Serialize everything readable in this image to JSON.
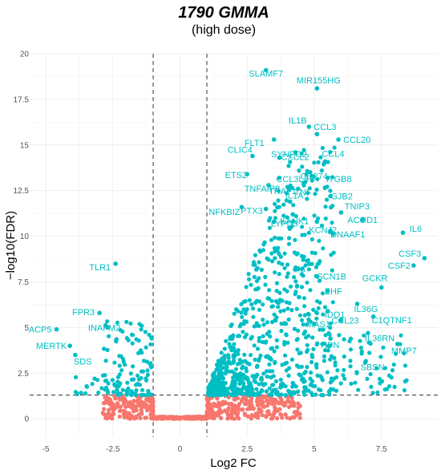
{
  "chart_data": {
    "type": "scatter",
    "title": "1790 GMMA",
    "subtitle": "(high dose)",
    "xlabel": "Log2 FC",
    "ylabel": "−log10(FDR)",
    "xlim": [
      -5.6,
      9.6
    ],
    "ylim": [
      -1.0,
      20.0
    ],
    "x_ticks": [
      -5,
      -2.5,
      0,
      2.5,
      5,
      7.5
    ],
    "x_tick_labels": [
      "-5",
      "-2.5",
      "0",
      "2.5",
      "5",
      "7.5"
    ],
    "y_ticks": [
      0,
      2.5,
      5,
      7.5,
      10,
      12.5,
      15,
      17.5,
      20
    ],
    "y_tick_labels": [
      "0",
      "2.5",
      "5",
      "7.5",
      "10",
      "12.5",
      "15",
      "17.5",
      "20"
    ],
    "grid": true,
    "thresholds": {
      "log2fc": [
        -1,
        1
      ],
      "neg_log10_fdr": 1.3
    },
    "colors": {
      "significant": "#00BFC4",
      "not_significant": "#F8766D",
      "threshold_line": "#333333"
    },
    "labeled_points": [
      {
        "gene": "SLAMF7",
        "x": 3.2,
        "y": 19.1
      },
      {
        "gene": "MIR155HG",
        "x": 5.1,
        "y": 18.1
      },
      {
        "gene": "IL1B",
        "x": 4.8,
        "y": 16.0
      },
      {
        "gene": "CCL3",
        "x": 5.1,
        "y": 15.6
      },
      {
        "gene": "FLT1",
        "x": 3.5,
        "y": 15.3
      },
      {
        "gene": "CCL20",
        "x": 5.9,
        "y": 15.3
      },
      {
        "gene": "SYNPO2",
        "x": 4.3,
        "y": 14.6
      },
      {
        "gene": "CLIC4",
        "x": 2.7,
        "y": 14.4
      },
      {
        "gene": "CXCL2",
        "x": 3.7,
        "y": 14.3
      },
      {
        "gene": "CCL4",
        "x": 5.4,
        "y": 14.1
      },
      {
        "gene": "ETS2",
        "x": 2.5,
        "y": 13.4
      },
      {
        "gene": "CD274",
        "x": 4.9,
        "y": 13.3
      },
      {
        "gene": "CCL3L3",
        "x": 3.7,
        "y": 13.2
      },
      {
        "gene": "ITGB8",
        "x": 5.5,
        "y": 13.2
      },
      {
        "gene": "TNFAIP8",
        "x": 3.3,
        "y": 12.8
      },
      {
        "gene": "TRAF1",
        "x": 4.0,
        "y": 12.7
      },
      {
        "gene": "TNF",
        "x": 4.4,
        "y": 12.6
      },
      {
        "gene": "GJB2",
        "x": 5.6,
        "y": 12.2
      },
      {
        "gene": "IL1A",
        "x": 4.1,
        "y": 11.9
      },
      {
        "gene": "NFKBIZ",
        "x": 2.3,
        "y": 11.6
      },
      {
        "gene": "PTX3",
        "x": 3.2,
        "y": 11.5
      },
      {
        "gene": "TNIP3",
        "x": 6.0,
        "y": 11.3
      },
      {
        "gene": "KANK1",
        "x": 4.2,
        "y": 11.2
      },
      {
        "gene": "ACOD1",
        "x": 6.8,
        "y": 10.9
      },
      {
        "gene": "IL6",
        "x": 8.3,
        "y": 10.2
      },
      {
        "gene": "LYPD3",
        "x": 3.5,
        "y": 10.8
      },
      {
        "gene": "KCNJ2",
        "x": 5.1,
        "y": 10.8
      },
      {
        "gene": "DNAAF1",
        "x": 5.6,
        "y": 10.3
      },
      {
        "gene": "CSF3",
        "x": 9.1,
        "y": 8.8
      },
      {
        "gene": "TLR1",
        "x": -2.4,
        "y": 8.5
      },
      {
        "gene": "F3",
        "x": 4.4,
        "y": 8.2
      },
      {
        "gene": "SCN1B",
        "x": 5.1,
        "y": 7.8
      },
      {
        "gene": "CSF2",
        "x": 8.7,
        "y": 8.4
      },
      {
        "gene": "GCKR",
        "x": 7.5,
        "y": 7.2
      },
      {
        "gene": "EHF",
        "x": 5.5,
        "y": 7.0
      },
      {
        "gene": "IDO1",
        "x": 5.5,
        "y": 5.9
      },
      {
        "gene": "IL36G",
        "x": 6.6,
        "y": 6.3
      },
      {
        "gene": "FPR3",
        "x": -3.0,
        "y": 5.8
      },
      {
        "gene": "ACP5",
        "x": -4.6,
        "y": 4.9
      },
      {
        "gene": "INAFM2",
        "x": -2.7,
        "y": 5.0
      },
      {
        "gene": "CCL23",
        "x": 6.0,
        "y": 5.4
      },
      {
        "gene": "C1QTNF1",
        "x": 7.2,
        "y": 5.6
      },
      {
        "gene": "MAS1",
        "x": 5.0,
        "y": 5.2
      },
      {
        "gene": "MERTK",
        "x": -4.1,
        "y": 4.0
      },
      {
        "gene": "HPN",
        "x": 5.6,
        "y": 4.4
      },
      {
        "gene": "IL36RN",
        "x": 7.0,
        "y": 4.7
      },
      {
        "gene": "MMP7",
        "x": 8.1,
        "y": 4.1
      },
      {
        "gene": "SDS",
        "x": -3.9,
        "y": 3.5
      },
      {
        "gene": "SBSN",
        "x": 6.9,
        "y": 3.1
      }
    ]
  }
}
